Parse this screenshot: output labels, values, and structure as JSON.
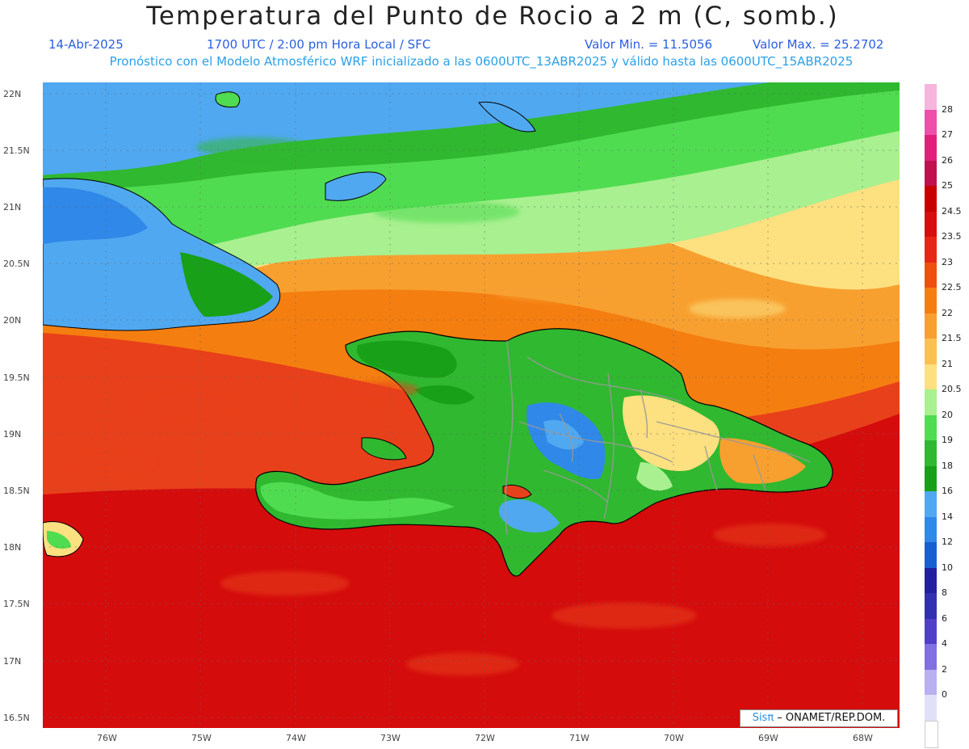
{
  "header": {
    "title": "Temperatura del Punto de Rocio a 2 m (C, somb.)",
    "date": "14-Abr-2025",
    "time": "1700 UTC / 2:00 pm Hora Local / SFC",
    "min": "Valor Min. = 11.5056",
    "max": "Valor Max. = 25.2702",
    "model": "Pronóstico con el Modelo Atmosférico WRF inicializado a las 0600UTC_13ABR2025 y válido hasta las  0600UTC_15ABR2025"
  },
  "axes": {
    "lat_labels": [
      "22N",
      "21.5N",
      "21N",
      "20.5N",
      "20N",
      "19.5N",
      "19N",
      "18.5N",
      "18N",
      "17.5N",
      "17N",
      "16.5N"
    ],
    "lon_labels": [
      "76W",
      "75W",
      "74W",
      "73W",
      "72W",
      "71W",
      "70W",
      "69W",
      "68W"
    ]
  },
  "colorbar": {
    "labels": [
      "28",
      "27",
      "26",
      "25",
      "24.5",
      "23.5",
      "23",
      "22.5",
      "22",
      "21.5",
      "21",
      "20.5",
      "20",
      "19",
      "18",
      "16",
      "14",
      "12",
      "10",
      "8",
      "6",
      "4",
      "2",
      "0"
    ],
    "colors": [
      "#f5b5dc",
      "#ee4fa8",
      "#e0207a",
      "#c01050",
      "#c80000",
      "#d80e0e",
      "#e82616",
      "#ef5010",
      "#f57e10",
      "#f7a030",
      "#fbc050",
      "#fde080",
      "#a8f090",
      "#50dc50",
      "#30b830",
      "#18a018",
      "#50a8f0",
      "#3088e8",
      "#1860d0",
      "#2020a0",
      "#3030b0",
      "#5040c8",
      "#8070e0",
      "#b8b0f0",
      "#e0e0f8",
      "#ffffff"
    ]
  },
  "credit": {
    "brand": "Sisπ",
    "org": " – ONAMET/REP.DOM."
  }
}
